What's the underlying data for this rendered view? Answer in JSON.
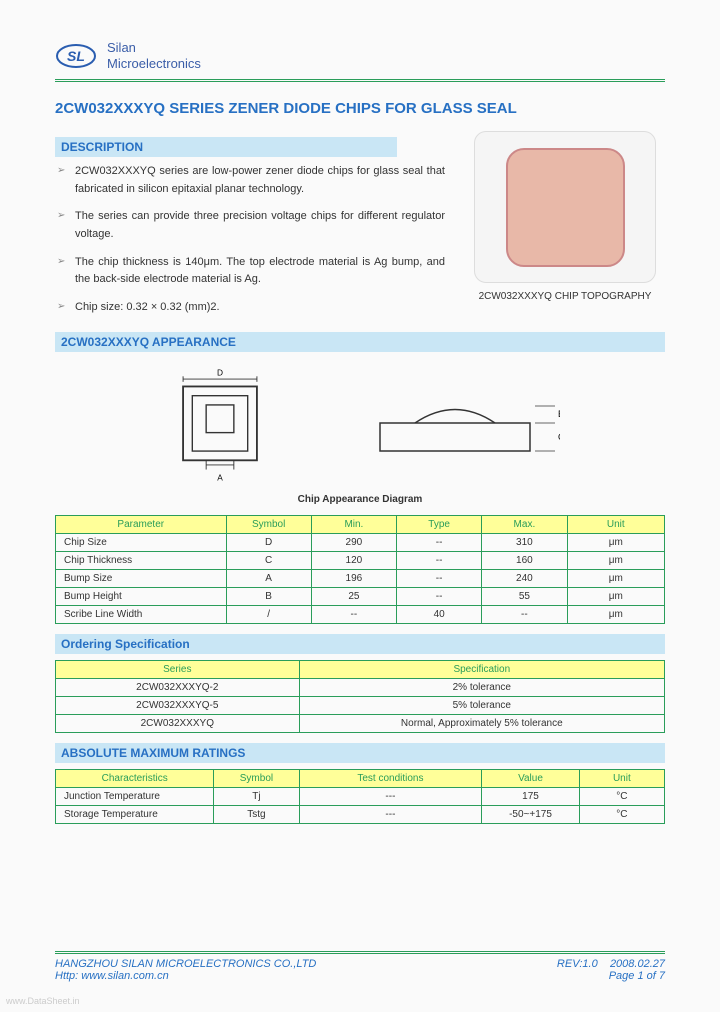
{
  "brand_line1": "Silan",
  "brand_line2": "Microelectronics",
  "title": "2CW032XXXYQ SERIES ZENER DIODE CHIPS FOR GLASS SEAL",
  "sec_description": "DESCRIPTION",
  "desc": [
    "2CW032XXXYQ series are low-power zener diode chips for glass seal that fabricated in silicon epitaxial planar technology.",
    "The series can provide three precision voltage chips for different regulator voltage.",
    "The chip thickness is 140μm. The top electrode material is Ag bump, and the back-side electrode material is Ag.",
    "Chip size: 0.32 × 0.32 (mm)2."
  ],
  "topo_caption": "2CW032XXXYQ CHIP TOPOGRAPHY",
  "sec_appearance": "2CW032XXXYQ APPEARANCE",
  "diagram_caption": "Chip Appearance Diagram",
  "table1": {
    "headers": [
      "Parameter",
      "Symbol",
      "Min.",
      "Type",
      "Max.",
      "Unit"
    ],
    "col_widths": [
      "28%",
      "14%",
      "14%",
      "14%",
      "14%",
      "16%"
    ],
    "rows": [
      [
        "Chip Size",
        "D",
        "290",
        "--",
        "310",
        "μm"
      ],
      [
        "Chip Thickness",
        "C",
        "120",
        "--",
        "160",
        "μm"
      ],
      [
        "Bump Size",
        "A",
        "196",
        "--",
        "240",
        "μm"
      ],
      [
        "Bump Height",
        "B",
        "25",
        "--",
        "55",
        "μm"
      ],
      [
        "Scribe Line Width",
        "/",
        "--",
        "40",
        "--",
        "μm"
      ]
    ]
  },
  "sec_ordering": "Ordering Specification",
  "table2": {
    "headers": [
      "Series",
      "Specification"
    ],
    "col_widths": [
      "40%",
      "60%"
    ],
    "rows": [
      [
        "2CW032XXXYQ-2",
        "2% tolerance"
      ],
      [
        "2CW032XXXYQ-5",
        "5% tolerance"
      ],
      [
        "2CW032XXXYQ",
        "Normal, Approximately 5% tolerance"
      ]
    ]
  },
  "sec_amr": "ABSOLUTE MAXIMUM RATINGS",
  "table3": {
    "headers": [
      "Characteristics",
      "Symbol",
      "Test conditions",
      "Value",
      "Unit"
    ],
    "col_widths": [
      "26%",
      "14%",
      "30%",
      "16%",
      "14%"
    ],
    "rows": [
      [
        "Junction Temperature",
        "Tj",
        "---",
        "175",
        "°C"
      ],
      [
        "Storage Temperature",
        "Tstg",
        "---",
        "-50~+175",
        "°C"
      ]
    ]
  },
  "footer": {
    "company": "HANGZHOU SILAN MICROELECTRONICS CO.,LTD",
    "rev": "REV:1.0",
    "date": "2008.02.27",
    "url": "Http: www.silan.com.cn",
    "page": "Page 1 of 7"
  },
  "watermark": "www.DataSheet.in",
  "colors": {
    "bar_bg": "#c9e6f5",
    "bar_text": "#2770c3",
    "th_bg": "#ffff99",
    "th_text": "#2a9d5a",
    "border": "#2a9d5a"
  }
}
